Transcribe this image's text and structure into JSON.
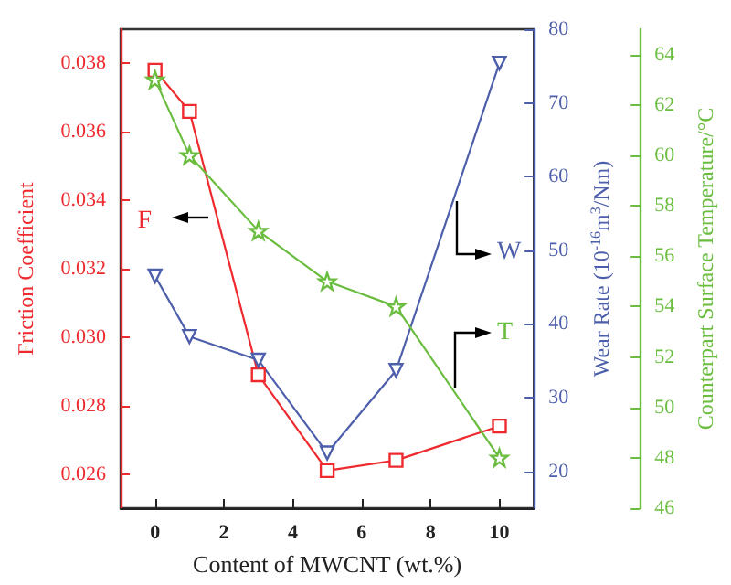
{
  "chart_data": {
    "type": "line",
    "xlabel": "Content of MWCNT (wt.%)",
    "ylabel": "Friction Coefficient",
    "y2label": "Wear Rate (10$^{-16}$m$^{3}$/Nm)",
    "y3label": "Counterpart Surface Temperature/°C",
    "x": [
      0,
      1,
      3,
      5,
      7,
      10
    ],
    "xlim": [
      -1,
      11
    ],
    "xticks": [
      0,
      2,
      4,
      6,
      8,
      10
    ],
    "ylim": [
      0.025,
      0.039
    ],
    "yticks": [
      0.026,
      0.028,
      {
        "value": 0.03,
        "label": "0.030"
      },
      0.032,
      0.034,
      0.036,
      0.038
    ],
    "y2lim": [
      15,
      80
    ],
    "y2ticks": [
      20,
      30,
      40,
      50,
      60,
      70,
      80
    ],
    "y3lim": [
      46,
      65
    ],
    "y3ticks": [
      46,
      48,
      50,
      52,
      54,
      56,
      58,
      60,
      62,
      64
    ],
    "series": [
      {
        "color": "#ee2a2f",
        "marker": "square",
        "values": [
          0.0378,
          0.0366,
          0.0289,
          0.0261,
          0.0264,
          0.0274
        ]
      },
      {
        "color": "#4d5eab",
        "marker": "triangle",
        "axis": "y2",
        "values": [
          46.5,
          38.3,
          35.1,
          22.5,
          33.7,
          75.4
        ]
      },
      {
        "color": "#6abd3f",
        "marker": "star",
        "axis": "y3",
        "values": [
          63.0,
          60.0,
          57.0,
          55.0,
          54.0,
          48.0
        ]
      }
    ],
    "annotations": [
      "F",
      "W",
      "T"
    ]
  }
}
